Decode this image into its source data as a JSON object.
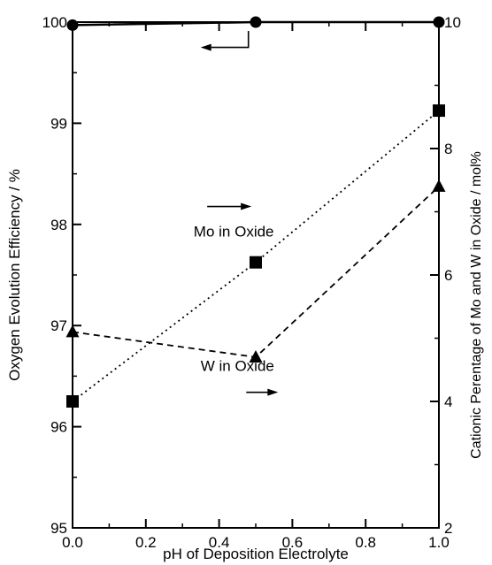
{
  "chart_data": {
    "type": "line",
    "xlabel": "pH of Deposition Electrolyte",
    "ylabel_left": "Oxygen Evolution Efficiency / %",
    "ylabel_right": "Cationic Perentage of Mo and W in Oxide / mol%",
    "xlim": [
      0.0,
      1.0
    ],
    "ylim_left": [
      95,
      100
    ],
    "ylim_right": [
      2,
      10
    ],
    "x_ticks": [
      "0.0",
      "0.2",
      "0.4",
      "0.6",
      "0.8",
      "1.0"
    ],
    "y_ticks_left": [
      "95",
      "96",
      "97",
      "98",
      "99",
      "100"
    ],
    "y_ticks_right": [
      "2",
      "4",
      "6",
      "8",
      "10"
    ],
    "grid": false,
    "series": [
      {
        "axis": "left",
        "marker": "circle",
        "line_style": "solid",
        "x": [
          0.0,
          0.5,
          1.0
        ],
        "y": [
          99.97,
          100.0,
          100.0
        ]
      },
      {
        "axis": "right",
        "marker": "square",
        "line_style": "dotted",
        "x": [
          0.0,
          0.5,
          1.0
        ],
        "y": [
          4.0,
          6.2,
          8.6
        ]
      },
      {
        "axis": "right",
        "marker": "triangle",
        "line_style": "dashed",
        "x": [
          0.0,
          0.5,
          1.0
        ],
        "y": [
          5.1,
          4.7,
          7.4
        ]
      }
    ],
    "annotations": [
      {
        "text": "Mo in Oxide",
        "x": 0.44,
        "y_left": 97.88,
        "arrow": "right"
      },
      {
        "text": "W in Oxide",
        "x": 0.45,
        "y_left": 96.55,
        "arrow": "right"
      },
      {
        "text": "",
        "x": 0.48,
        "y_left": 99.75,
        "arrow": "left"
      }
    ]
  }
}
